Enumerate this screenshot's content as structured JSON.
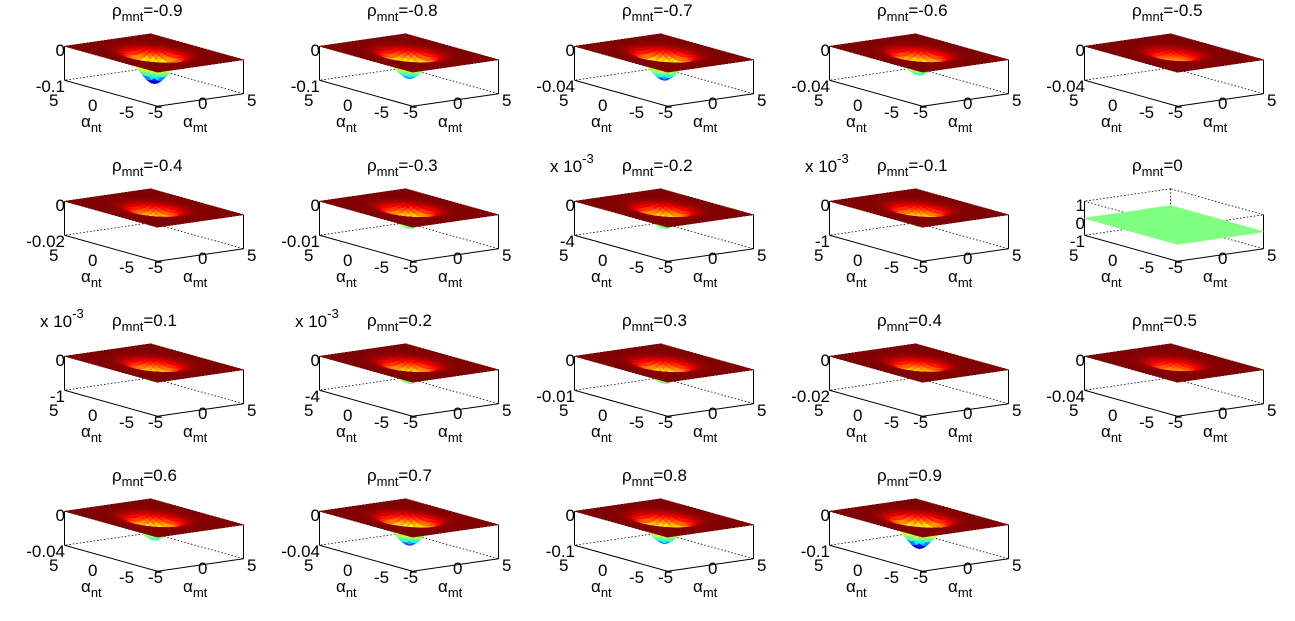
{
  "figure": {
    "columns": 5,
    "x_axis": {
      "label": "α",
      "label_sub": "mt",
      "ticks": [
        "-5",
        "0",
        "5"
      ]
    },
    "y_axis": {
      "label": "α",
      "label_sub": "nt",
      "ticks": [
        "5",
        "0",
        "-5"
      ]
    },
    "title_prefix": "ρ",
    "title_sub": "mnt",
    "colormap": [
      "#00007f",
      "#0000ff",
      "#00ffff",
      "#7fff7f",
      "#ffff00",
      "#ff7f00",
      "#ff0000",
      "#7f0000"
    ],
    "flat_color": "#80ff80"
  },
  "chart_data": [
    {
      "type": "surface",
      "title": "=-0.9",
      "rho": -0.9,
      "zticks": [
        "0",
        "-0.1"
      ],
      "zlim": [
        -0.1,
        0
      ],
      "exponent": "",
      "depth": 0.9,
      "width": 1.2
    },
    {
      "type": "surface",
      "title": "=-0.8",
      "rho": -0.8,
      "zticks": [
        "0",
        "-0.1"
      ],
      "zlim": [
        -0.1,
        0
      ],
      "exponent": "",
      "depth": 0.75,
      "width": 1.2
    },
    {
      "type": "surface",
      "title": "=-0.7",
      "rho": -0.7,
      "zticks": [
        "0",
        "-0.04"
      ],
      "zlim": [
        -0.04,
        0
      ],
      "exponent": "",
      "depth": 0.8,
      "width": 1.2
    },
    {
      "type": "surface",
      "title": "=-0.6",
      "rho": -0.6,
      "zticks": [
        "0",
        "-0.04"
      ],
      "zlim": [
        -0.04,
        0
      ],
      "exponent": "",
      "depth": 0.65,
      "width": 1.2
    },
    {
      "type": "surface",
      "title": "=-0.5",
      "rho": -0.5,
      "zticks": [
        "0",
        "-0.04"
      ],
      "zlim": [
        -0.04,
        0
      ],
      "exponent": "",
      "depth": 0.35,
      "width": 1.2
    },
    {
      "type": "surface",
      "title": "=-0.4",
      "rho": -0.4,
      "zticks": [
        "0",
        "-0.02"
      ],
      "zlim": [
        -0.02,
        0
      ],
      "exponent": "",
      "depth": 0.5,
      "width": 1.2
    },
    {
      "type": "surface",
      "title": "=-0.3",
      "rho": -0.3,
      "zticks": [
        "0",
        "-0.01"
      ],
      "zlim": [
        -0.01,
        0
      ],
      "exponent": "",
      "depth": 0.6,
      "width": 1.2
    },
    {
      "type": "surface",
      "title": "=-0.2",
      "rho": -0.2,
      "zticks": [
        "0",
        "-4"
      ],
      "zlim": [
        -4,
        0
      ],
      "exponent": "-3",
      "depth": 0.6,
      "width": 1.2
    },
    {
      "type": "surface",
      "title": "=-0.1",
      "rho": -0.1,
      "zticks": [
        "0",
        "-1"
      ],
      "zlim": [
        -1,
        0
      ],
      "exponent": "-3",
      "depth": 0.55,
      "width": 1.2
    },
    {
      "type": "surface",
      "title": "=0",
      "rho": 0,
      "zticks": [
        "1",
        "0",
        "-1"
      ],
      "zlim": [
        -1,
        1
      ],
      "exponent": "",
      "depth": 0,
      "width": 1.2,
      "flat": true
    },
    {
      "type": "surface",
      "title": "=0.1",
      "rho": 0.1,
      "zticks": [
        "0",
        "-1"
      ],
      "zlim": [
        -1,
        0
      ],
      "exponent": "-3",
      "depth": 0.55,
      "width": 1.2
    },
    {
      "type": "surface",
      "title": "=0.2",
      "rho": 0.2,
      "zticks": [
        "0",
        "-4"
      ],
      "zlim": [
        -4,
        0
      ],
      "exponent": "-3",
      "depth": 0.6,
      "width": 1.2
    },
    {
      "type": "surface",
      "title": "=0.3",
      "rho": 0.3,
      "zticks": [
        "0",
        "-0.01"
      ],
      "zlim": [
        -0.01,
        0
      ],
      "exponent": "",
      "depth": 0.6,
      "width": 1.2
    },
    {
      "type": "surface",
      "title": "=0.4",
      "rho": 0.4,
      "zticks": [
        "0",
        "-0.02"
      ],
      "zlim": [
        -0.02,
        0
      ],
      "exponent": "",
      "depth": 0.5,
      "width": 1.2
    },
    {
      "type": "surface",
      "title": "=0.5",
      "rho": 0.5,
      "zticks": [
        "0",
        "-0.04"
      ],
      "zlim": [
        -0.04,
        0
      ],
      "exponent": "",
      "depth": 0.35,
      "width": 1.2
    },
    {
      "type": "surface",
      "title": "=0.6",
      "rho": 0.6,
      "zticks": [
        "0",
        "-0.04"
      ],
      "zlim": [
        -0.04,
        0
      ],
      "exponent": "",
      "depth": 0.65,
      "width": 1.2
    },
    {
      "type": "surface",
      "title": "=0.7",
      "rho": 0.7,
      "zticks": [
        "0",
        "-0.04"
      ],
      "zlim": [
        -0.04,
        0
      ],
      "exponent": "",
      "depth": 0.8,
      "width": 1.2
    },
    {
      "type": "surface",
      "title": "=0.8",
      "rho": 0.8,
      "zticks": [
        "0",
        "-0.1"
      ],
      "zlim": [
        -0.1,
        0
      ],
      "exponent": "",
      "depth": 0.75,
      "width": 1.2
    },
    {
      "type": "surface",
      "title": "=0.9",
      "rho": 0.9,
      "zticks": [
        "0",
        "-0.1"
      ],
      "zlim": [
        -0.1,
        0
      ],
      "exponent": "",
      "depth": 0.9,
      "width": 1.2
    }
  ]
}
